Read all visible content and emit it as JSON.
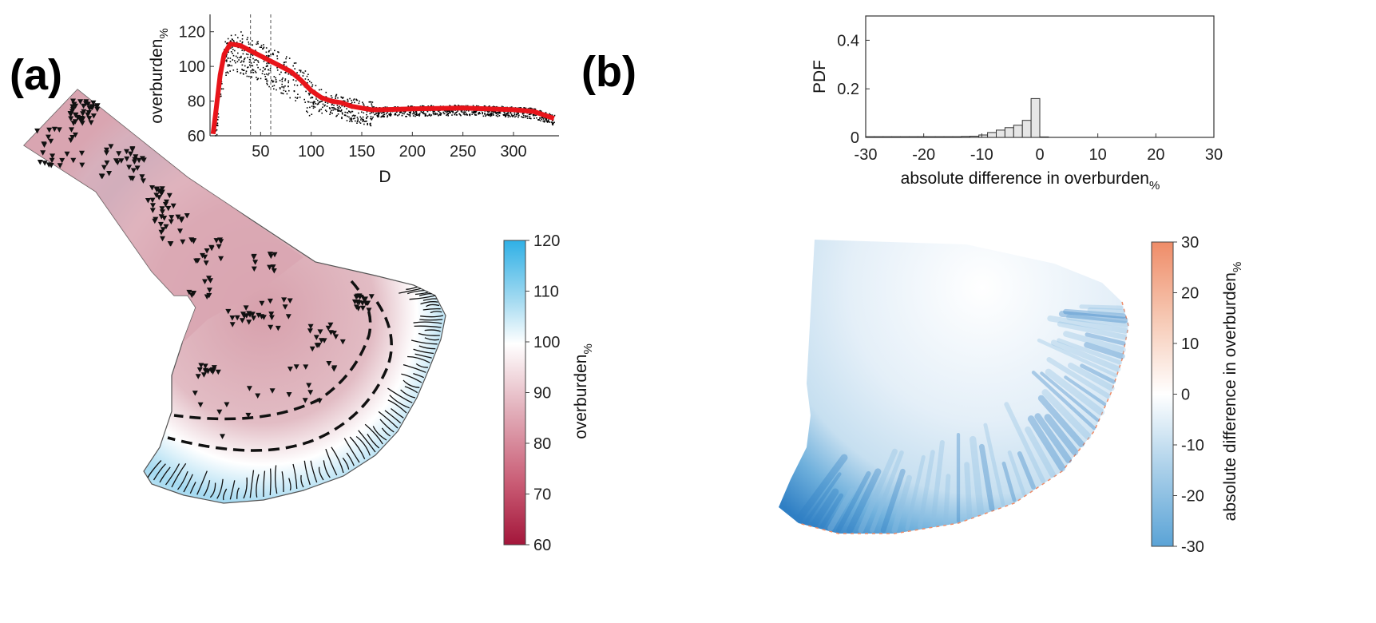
{
  "panels": {
    "a": {
      "label": "(a)"
    },
    "b": {
      "label": "(b)"
    }
  },
  "chart_data": [
    {
      "id": "a-inset",
      "type": "scatter",
      "xlabel": "D",
      "ylabel": "overburden",
      "ylabel_sub": "%",
      "xlim": [
        0,
        345
      ],
      "ylim": [
        60,
        130
      ],
      "xticks": [
        50,
        100,
        150,
        200,
        250,
        300
      ],
      "yticks": [
        60,
        80,
        100,
        120
      ],
      "vlines": [
        40,
        60
      ],
      "series": [
        {
          "style": "red-line",
          "x": [
            3,
            6,
            10,
            14,
            20,
            30,
            40,
            50,
            60,
            70,
            80,
            90,
            100,
            110,
            120,
            130,
            140,
            150,
            160,
            170,
            200,
            250,
            300,
            320,
            330,
            340
          ],
          "y": [
            61,
            75,
            95,
            107,
            113,
            112,
            109,
            106,
            103,
            100,
            97,
            92,
            86,
            82,
            80,
            79,
            77,
            76,
            75,
            75,
            75.5,
            76,
            75,
            74,
            72,
            70
          ]
        }
      ]
    },
    {
      "id": "a-colorbar",
      "type": "heatmap",
      "zlabel": "overburden",
      "zlabel_sub": "%",
      "zlim": [
        60,
        120
      ],
      "ticks": [
        60,
        70,
        80,
        90,
        100,
        110,
        120
      ],
      "colormap": [
        "#a3163a",
        "#c95b74",
        "#e3a8b5",
        "#ffffff",
        "#9fd8f0",
        "#2fb0e6"
      ]
    },
    {
      "id": "b-histogram",
      "type": "bar",
      "xlabel": "absolute difference in overburden",
      "xlabel_sub": "%",
      "ylabel": "PDF",
      "xlim": [
        -30,
        30
      ],
      "ylim": [
        0,
        0.5
      ],
      "xticks": [
        -30,
        -20,
        -10,
        0,
        10,
        20,
        30
      ],
      "yticks": [
        0,
        0.2,
        0.4
      ],
      "bin_width": 1.5,
      "bins_left": [
        -30,
        -28.5,
        -27,
        -25.5,
        -24,
        -22.5,
        -21,
        -19.5,
        -18,
        -16.5,
        -15,
        -13.5,
        -12,
        -10.5,
        -9,
        -7.5,
        -6,
        -4.5,
        -3,
        -1.5,
        0
      ],
      "values": [
        0.003,
        0.003,
        0.003,
        0.003,
        0.003,
        0.003,
        0.003,
        0.003,
        0.003,
        0.003,
        0.003,
        0.004,
        0.005,
        0.01,
        0.02,
        0.03,
        0.04,
        0.05,
        0.07,
        0.16,
        0.002
      ]
    },
    {
      "id": "b-colorbar",
      "type": "heatmap",
      "zlabel": "absolute difference in overburden",
      "zlabel_sub": "%",
      "zlim": [
        -30,
        30
      ],
      "ticks": [
        -30,
        -20,
        -10,
        0,
        10,
        20,
        30
      ],
      "colormap": [
        "#5aa3d6",
        "#a6cde8",
        "#ffffff",
        "#f6c4ad",
        "#ef8c68"
      ]
    }
  ]
}
